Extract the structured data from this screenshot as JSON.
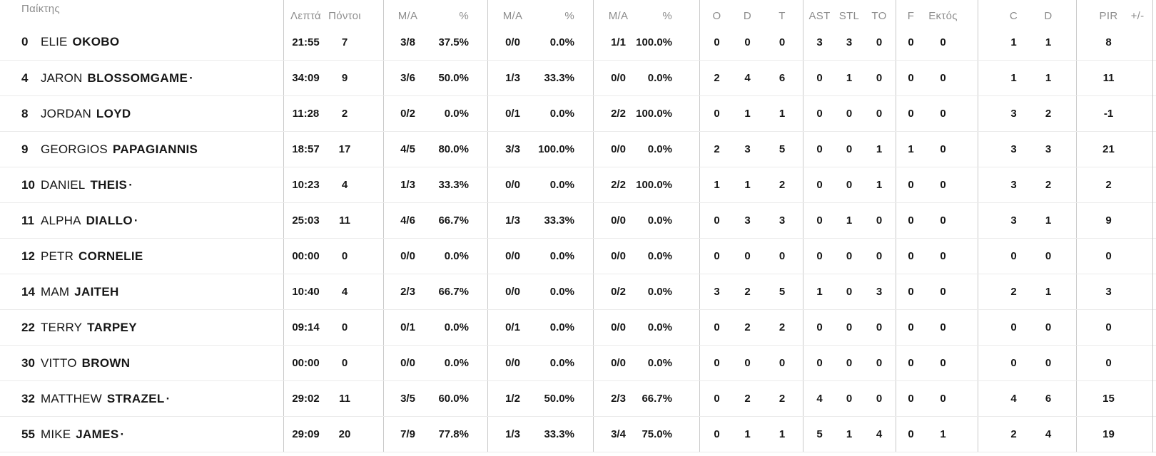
{
  "starter_mark": "·",
  "header": {
    "player": "Παίκτης",
    "minutes": "Λεπτά",
    "points": "Πόντοι",
    "fg2_ma": "M/A",
    "fg2_pct": "%",
    "fg3_ma": "M/A",
    "fg3_pct": "%",
    "ft_ma": "M/A",
    "ft_pct": "%",
    "reb_o": "O",
    "reb_d": "D",
    "reb_t": "T",
    "ast": "AST",
    "stl": "STL",
    "to": "TO",
    "fouls": "F",
    "fouls_out": "Εκτός",
    "c": "C",
    "d": "D",
    "pir": "PIR",
    "plus_minus": "+/-"
  },
  "players": [
    {
      "num": "0",
      "first": "ELIE",
      "last": "OKOBO",
      "starter": false,
      "stats": {
        "min": "21:55",
        "pts": "7",
        "fg2_ma": "3/8",
        "fg2_pct": "37.5%",
        "fg3_ma": "0/0",
        "fg3_pct": "0.0%",
        "ft_ma": "1/1",
        "ft_pct": "100.0%",
        "reb_o": "0",
        "reb_d": "0",
        "reb_t": "0",
        "ast": "3",
        "stl": "3",
        "to": "0",
        "f": "0",
        "out": "0",
        "c": "1",
        "d": "1",
        "pir": "8",
        "pm": ""
      }
    },
    {
      "num": "4",
      "first": "JARON",
      "last": "BLOSSOMGAME",
      "starter": true,
      "stats": {
        "min": "34:09",
        "pts": "9",
        "fg2_ma": "3/6",
        "fg2_pct": "50.0%",
        "fg3_ma": "1/3",
        "fg3_pct": "33.3%",
        "ft_ma": "0/0",
        "ft_pct": "0.0%",
        "reb_o": "2",
        "reb_d": "4",
        "reb_t": "6",
        "ast": "0",
        "stl": "1",
        "to": "0",
        "f": "0",
        "out": "0",
        "c": "1",
        "d": "1",
        "pir": "11",
        "pm": ""
      }
    },
    {
      "num": "8",
      "first": "JORDAN",
      "last": "LOYD",
      "starter": false,
      "stats": {
        "min": "11:28",
        "pts": "2",
        "fg2_ma": "0/2",
        "fg2_pct": "0.0%",
        "fg3_ma": "0/1",
        "fg3_pct": "0.0%",
        "ft_ma": "2/2",
        "ft_pct": "100.0%",
        "reb_o": "0",
        "reb_d": "1",
        "reb_t": "1",
        "ast": "0",
        "stl": "0",
        "to": "0",
        "f": "0",
        "out": "0",
        "c": "3",
        "d": "2",
        "pir": "-1",
        "pm": ""
      }
    },
    {
      "num": "9",
      "first": "GEORGIOS",
      "last": "PAPAGIANNIS",
      "starter": false,
      "stats": {
        "min": "18:57",
        "pts": "17",
        "fg2_ma": "4/5",
        "fg2_pct": "80.0%",
        "fg3_ma": "3/3",
        "fg3_pct": "100.0%",
        "ft_ma": "0/0",
        "ft_pct": "0.0%",
        "reb_o": "2",
        "reb_d": "3",
        "reb_t": "5",
        "ast": "0",
        "stl": "0",
        "to": "1",
        "f": "1",
        "out": "0",
        "c": "3",
        "d": "3",
        "pir": "21",
        "pm": ""
      }
    },
    {
      "num": "10",
      "first": "DANIEL",
      "last": "THEIS",
      "starter": true,
      "stats": {
        "min": "10:23",
        "pts": "4",
        "fg2_ma": "1/3",
        "fg2_pct": "33.3%",
        "fg3_ma": "0/0",
        "fg3_pct": "0.0%",
        "ft_ma": "2/2",
        "ft_pct": "100.0%",
        "reb_o": "1",
        "reb_d": "1",
        "reb_t": "2",
        "ast": "0",
        "stl": "0",
        "to": "1",
        "f": "0",
        "out": "0",
        "c": "3",
        "d": "2",
        "pir": "2",
        "pm": ""
      }
    },
    {
      "num": "11",
      "first": "ALPHA",
      "last": "DIALLO",
      "starter": true,
      "stats": {
        "min": "25:03",
        "pts": "11",
        "fg2_ma": "4/6",
        "fg2_pct": "66.7%",
        "fg3_ma": "1/3",
        "fg3_pct": "33.3%",
        "ft_ma": "0/0",
        "ft_pct": "0.0%",
        "reb_o": "0",
        "reb_d": "3",
        "reb_t": "3",
        "ast": "0",
        "stl": "1",
        "to": "0",
        "f": "0",
        "out": "0",
        "c": "3",
        "d": "1",
        "pir": "9",
        "pm": ""
      }
    },
    {
      "num": "12",
      "first": "PETR",
      "last": "CORNELIE",
      "starter": false,
      "stats": {
        "min": "00:00",
        "pts": "0",
        "fg2_ma": "0/0",
        "fg2_pct": "0.0%",
        "fg3_ma": "0/0",
        "fg3_pct": "0.0%",
        "ft_ma": "0/0",
        "ft_pct": "0.0%",
        "reb_o": "0",
        "reb_d": "0",
        "reb_t": "0",
        "ast": "0",
        "stl": "0",
        "to": "0",
        "f": "0",
        "out": "0",
        "c": "0",
        "d": "0",
        "pir": "0",
        "pm": ""
      }
    },
    {
      "num": "14",
      "first": "MAM",
      "last": "JAITEH",
      "starter": false,
      "stats": {
        "min": "10:40",
        "pts": "4",
        "fg2_ma": "2/3",
        "fg2_pct": "66.7%",
        "fg3_ma": "0/0",
        "fg3_pct": "0.0%",
        "ft_ma": "0/2",
        "ft_pct": "0.0%",
        "reb_o": "3",
        "reb_d": "2",
        "reb_t": "5",
        "ast": "1",
        "stl": "0",
        "to": "3",
        "f": "0",
        "out": "0",
        "c": "2",
        "d": "1",
        "pir": "3",
        "pm": ""
      }
    },
    {
      "num": "22",
      "first": "TERRY",
      "last": "TARPEY",
      "starter": false,
      "stats": {
        "min": "09:14",
        "pts": "0",
        "fg2_ma": "0/1",
        "fg2_pct": "0.0%",
        "fg3_ma": "0/1",
        "fg3_pct": "0.0%",
        "ft_ma": "0/0",
        "ft_pct": "0.0%",
        "reb_o": "0",
        "reb_d": "2",
        "reb_t": "2",
        "ast": "0",
        "stl": "0",
        "to": "0",
        "f": "0",
        "out": "0",
        "c": "0",
        "d": "0",
        "pir": "0",
        "pm": ""
      }
    },
    {
      "num": "30",
      "first": "VITTO",
      "last": "BROWN",
      "starter": false,
      "stats": {
        "min": "00:00",
        "pts": "0",
        "fg2_ma": "0/0",
        "fg2_pct": "0.0%",
        "fg3_ma": "0/0",
        "fg3_pct": "0.0%",
        "ft_ma": "0/0",
        "ft_pct": "0.0%",
        "reb_o": "0",
        "reb_d": "0",
        "reb_t": "0",
        "ast": "0",
        "stl": "0",
        "to": "0",
        "f": "0",
        "out": "0",
        "c": "0",
        "d": "0",
        "pir": "0",
        "pm": ""
      }
    },
    {
      "num": "32",
      "first": "MATTHEW",
      "last": "STRAZEL",
      "starter": true,
      "stats": {
        "min": "29:02",
        "pts": "11",
        "fg2_ma": "3/5",
        "fg2_pct": "60.0%",
        "fg3_ma": "1/2",
        "fg3_pct": "50.0%",
        "ft_ma": "2/3",
        "ft_pct": "66.7%",
        "reb_o": "0",
        "reb_d": "2",
        "reb_t": "2",
        "ast": "4",
        "stl": "0",
        "to": "0",
        "f": "0",
        "out": "0",
        "c": "4",
        "d": "6",
        "pir": "15",
        "pm": ""
      }
    },
    {
      "num": "55",
      "first": "MIKE",
      "last": "JAMES",
      "starter": true,
      "stats": {
        "min": "29:09",
        "pts": "20",
        "fg2_ma": "7/9",
        "fg2_pct": "77.8%",
        "fg3_ma": "1/3",
        "fg3_pct": "33.3%",
        "ft_ma": "3/4",
        "ft_pct": "75.0%",
        "reb_o": "0",
        "reb_d": "1",
        "reb_t": "1",
        "ast": "5",
        "stl": "1",
        "to": "4",
        "f": "0",
        "out": "1",
        "c": "2",
        "d": "4",
        "pir": "19",
        "pm": ""
      }
    }
  ]
}
